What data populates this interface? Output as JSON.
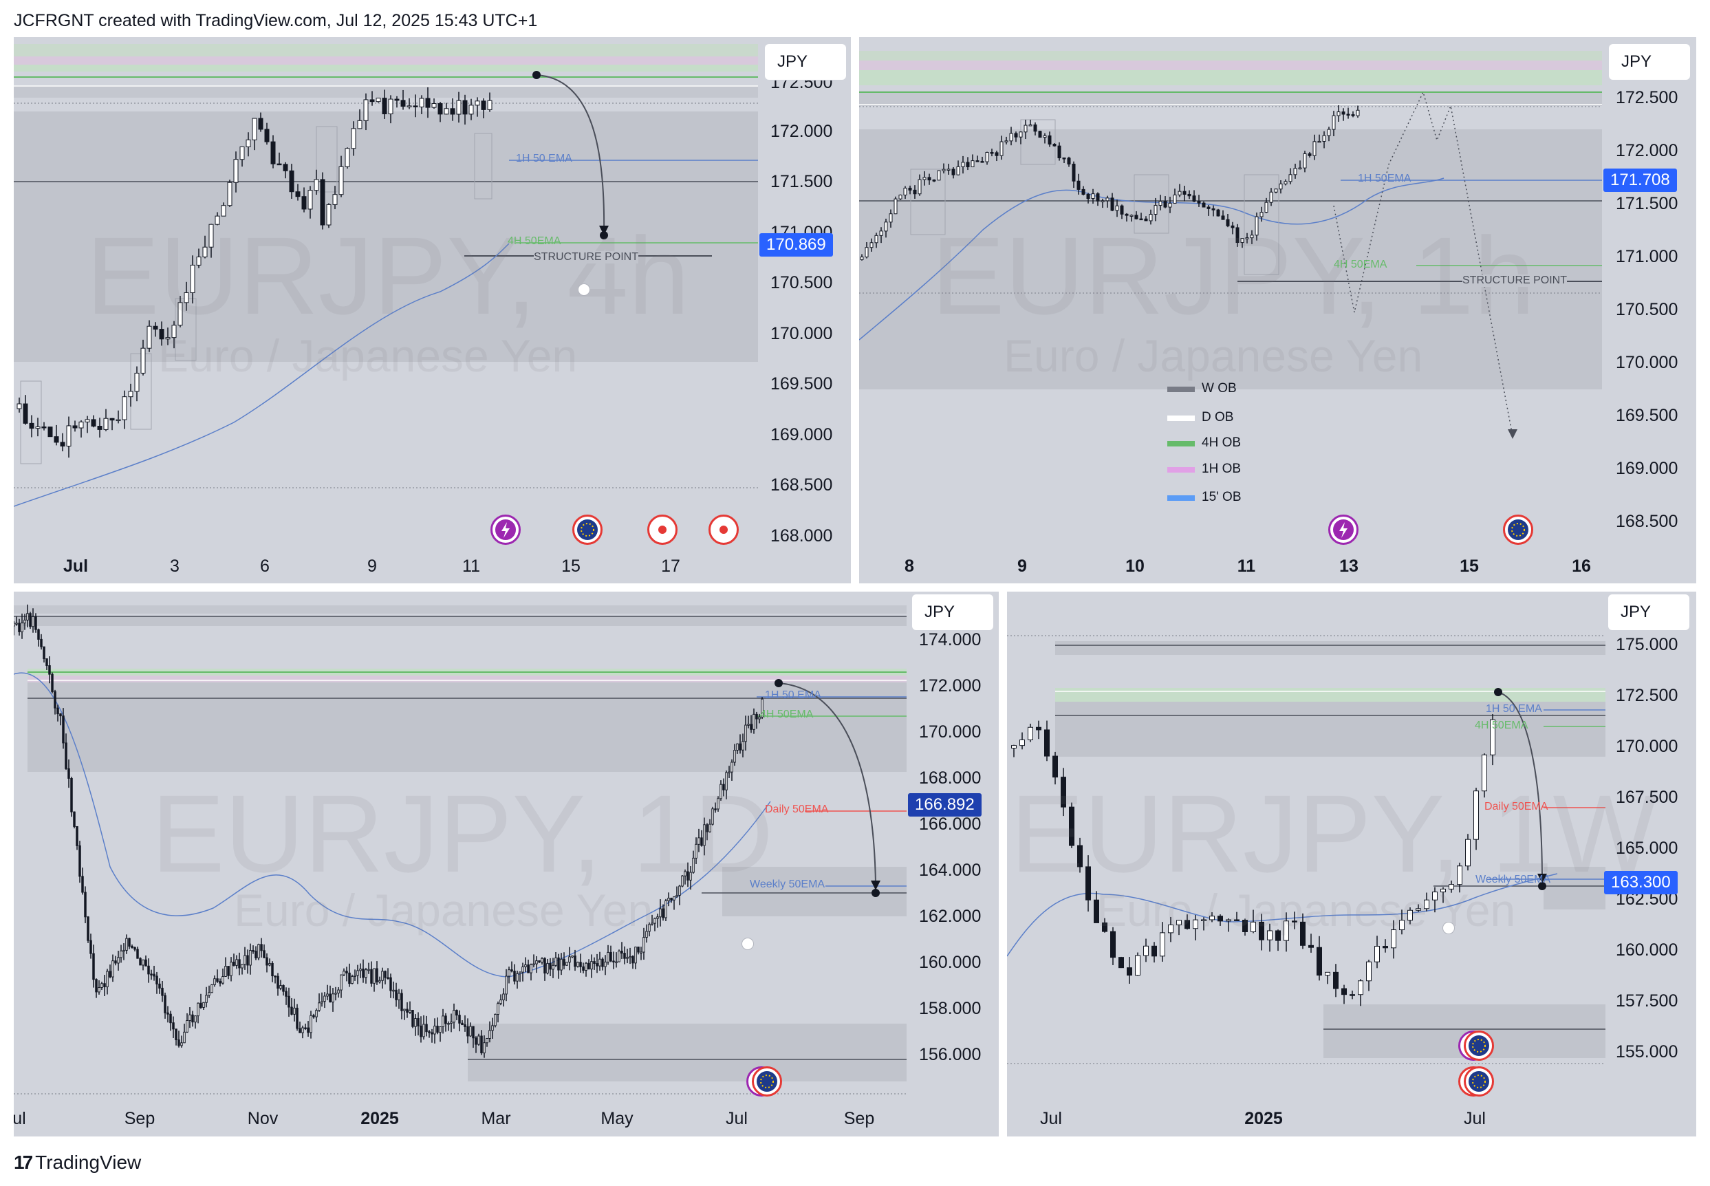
{
  "header": {
    "text": "JCFRGNT created with TradingView.com, Jul 12, 2025 15:43 UTC+1"
  },
  "footer": {
    "brand": "TradingView",
    "logo_glyph": "17"
  },
  "legend": {
    "items": [
      {
        "label": "W OB",
        "color": "#787b86"
      },
      {
        "label": "D OB",
        "color": "#ffffff"
      },
      {
        "label": "4H OB",
        "color": "#66bb6a"
      },
      {
        "label": "1H OB",
        "color": "#e1a0e6"
      },
      {
        "label": "15' OB",
        "color": "#5b9cf6"
      }
    ]
  },
  "panels": [
    {
      "id": "4h",
      "currency": "JPY",
      "watermark_symbol": "EURJPY, 4h",
      "watermark_name": "Euro / Japanese Yen",
      "price_labels": [
        "172.000",
        "171.500",
        "171.000",
        "170.500",
        "170.000",
        "169.500",
        "169.000",
        "168.500",
        "168.000"
      ],
      "clipped_top_label": "172.500",
      "time_labels": [
        "Jul",
        "3",
        "6",
        "9",
        "11",
        "15",
        "17"
      ],
      "last_price": "170.869",
      "annotations": {
        "ema_1h": "1H 50 EMA",
        "ema_4h": "4H 50EMA",
        "structure": "STRUCTURE POINT"
      }
    },
    {
      "id": "1h",
      "currency": "JPY",
      "watermark_symbol": "EURJPY, 1h",
      "watermark_name": "Euro / Japanese Yen",
      "price_labels": [
        "172.500",
        "172.000",
        "171.500",
        "171.000",
        "170.500",
        "170.000",
        "169.500",
        "169.000",
        "168.500"
      ],
      "time_labels": [
        "8",
        "9",
        "10",
        "11",
        "13",
        "15",
        "16"
      ],
      "last_price": "171.708",
      "annotations": {
        "ema_1h": "1H 50EMA",
        "ema_4h": "4H 50EMA",
        "structure": "STRUCTURE POINT"
      }
    },
    {
      "id": "1d",
      "currency": "JPY",
      "watermark_symbol": "EURJPY, 1D",
      "watermark_name": "Euro / Japanese Yen",
      "price_labels": [
        "174.000",
        "172.000",
        "170.000",
        "168.000",
        "166.000",
        "164.000",
        "162.000",
        "160.000",
        "158.000",
        "156.000"
      ],
      "time_labels": [
        "ul",
        "Sep",
        "Nov",
        "2025",
        "Mar",
        "May",
        "Jul",
        "Sep"
      ],
      "last_price": "166.892",
      "annotations": {
        "ema_1h": "1H 50 EMA",
        "ema_4h": "4H 50EMA",
        "ema_daily": "Daily 50EMA",
        "ema_weekly": "Weekly 50EMA"
      }
    },
    {
      "id": "1w",
      "currency": "JPY",
      "watermark_symbol": "EURJPY, 1W",
      "watermark_name": "Euro / Japanese Yen",
      "price_labels": [
        "175.000",
        "172.500",
        "170.000",
        "167.500",
        "165.000",
        "162.500",
        "160.000",
        "157.500",
        "155.000"
      ],
      "time_labels": [
        "Jul",
        "2025",
        "Jul"
      ],
      "last_price": "163.300",
      "annotations": {
        "ema_1h": "1H 50 EMA",
        "ema_4h": "4H 50EMA",
        "ema_daily": "Daily 50EMA",
        "ema_weekly": "Weekly 50EMA"
      }
    }
  ]
}
